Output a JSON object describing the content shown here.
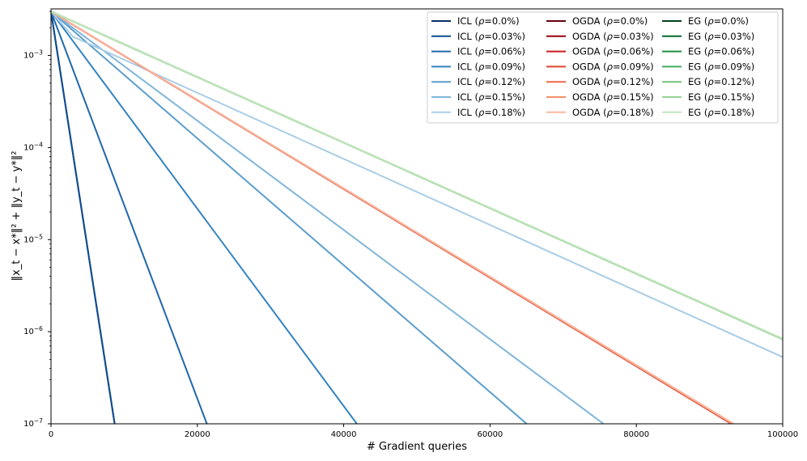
{
  "chart_data": {
    "type": "line",
    "xlabel": "# Gradient queries",
    "ylabel": "‖x_t − x*‖² + ‖y_t − y*‖²",
    "xlim": [
      0,
      100000
    ],
    "ylim": [
      1e-07,
      0.0032
    ],
    "yscale": "log",
    "x_ticks": [
      0,
      20000,
      40000,
      60000,
      80000,
      100000
    ],
    "y_ticks": [
      {
        "value": 1e-07,
        "base": "10",
        "exp": "−7"
      },
      {
        "value": 1e-06,
        "base": "10",
        "exp": "−6"
      },
      {
        "value": 1e-05,
        "base": "10",
        "exp": "−5"
      },
      {
        "value": 0.0001,
        "base": "10",
        "exp": "−4"
      },
      {
        "value": 0.001,
        "base": "10",
        "exp": "−3"
      }
    ],
    "legend_position": "top-right",
    "legend_columns": 3,
    "series": [
      {
        "name": "ICL (ρ=0.0%)",
        "prefix": "ICL",
        "rho": "0.0%",
        "color": "#08306b",
        "points": [
          [
            0,
            0.003
          ],
          [
            8700,
            1e-07
          ]
        ]
      },
      {
        "name": "ICL (ρ=0.03%)",
        "prefix": "ICL",
        "rho": "0.03%",
        "color": "#0f4d8f",
        "points": [
          [
            0,
            0.003
          ],
          [
            8700,
            1e-07
          ]
        ]
      },
      {
        "name": "ICL (ρ=0.06%)",
        "prefix": "ICL",
        "rho": "0.06%",
        "color": "#2166ac",
        "points": [
          [
            0,
            0.003
          ],
          [
            21300,
            1e-07
          ]
        ]
      },
      {
        "name": "ICL (ρ=0.09%)",
        "prefix": "ICL",
        "rho": "0.09%",
        "color": "#3383c0",
        "points": [
          [
            0,
            0.003
          ],
          [
            41800,
            1e-07
          ]
        ]
      },
      {
        "name": "ICL (ρ=0.12%)",
        "prefix": "ICL",
        "rho": "0.12%",
        "color": "#5a9ecc",
        "points": [
          [
            0,
            0.003
          ],
          [
            65000,
            1e-07
          ]
        ]
      },
      {
        "name": "ICL (ρ=0.15%)",
        "prefix": "ICL",
        "rho": "0.15%",
        "color": "#7fb6da",
        "points": [
          [
            0,
            0.003
          ],
          [
            75500,
            1e-07
          ]
        ]
      },
      {
        "name": "ICL (ρ=0.18%)",
        "prefix": "ICL",
        "rho": "0.18%",
        "color": "#a9cde6",
        "points": [
          [
            0,
            0.003
          ],
          [
            3000,
            0.0016
          ],
          [
            100000,
            5.3e-07
          ]
        ]
      },
      {
        "name": "OGDA (ρ=0.0%)",
        "prefix": "OGDA",
        "rho": "0.0%",
        "color": "#67000d",
        "points": [
          [
            0,
            0.003
          ],
          [
            93000,
            1e-07
          ]
        ]
      },
      {
        "name": "OGDA (ρ=0.03%)",
        "prefix": "OGDA",
        "rho": "0.03%",
        "color": "#99000d",
        "points": [
          [
            0,
            0.003
          ],
          [
            93000,
            1e-07
          ]
        ]
      },
      {
        "name": "OGDA (ρ=0.06%)",
        "prefix": "OGDA",
        "rho": "0.06%",
        "color": "#cb181d",
        "points": [
          [
            0,
            0.003
          ],
          [
            93000,
            1e-07
          ]
        ]
      },
      {
        "name": "OGDA (ρ=0.09%)",
        "prefix": "OGDA",
        "rho": "0.09%",
        "color": "#e0442c",
        "points": [
          [
            0,
            0.003
          ],
          [
            93000,
            1e-07
          ]
        ]
      },
      {
        "name": "OGDA (ρ=0.12%)",
        "prefix": "OGDA",
        "rho": "0.12%",
        "color": "#ef6548",
        "points": [
          [
            0,
            0.003
          ],
          [
            93100,
            1e-07
          ]
        ]
      },
      {
        "name": "OGDA (ρ=0.15%)",
        "prefix": "OGDA",
        "rho": "0.15%",
        "color": "#f4906c",
        "points": [
          [
            0,
            0.003
          ],
          [
            93200,
            1e-07
          ]
        ]
      },
      {
        "name": "OGDA (ρ=0.18%)",
        "prefix": "OGDA",
        "rho": "0.18%",
        "color": "#f9b59c",
        "points": [
          [
            0,
            0.003
          ],
          [
            93300,
            1e-07
          ]
        ]
      },
      {
        "name": "EG (ρ=0.0%)",
        "prefix": "EG",
        "rho": "0.0%",
        "color": "#00441b",
        "points": [
          [
            0,
            0.003
          ],
          [
            100000,
            8.3e-07
          ]
        ]
      },
      {
        "name": "EG (ρ=0.03%)",
        "prefix": "EG",
        "rho": "0.03%",
        "color": "#006d2c",
        "points": [
          [
            0,
            0.003
          ],
          [
            100000,
            8.3e-07
          ]
        ]
      },
      {
        "name": "EG (ρ=0.06%)",
        "prefix": "EG",
        "rho": "0.06%",
        "color": "#238b45",
        "points": [
          [
            0,
            0.003
          ],
          [
            100000,
            8.3e-07
          ]
        ]
      },
      {
        "name": "EG (ρ=0.09%)",
        "prefix": "EG",
        "rho": "0.09%",
        "color": "#41ab5d",
        "points": [
          [
            0,
            0.003
          ],
          [
            100000,
            8.3e-07
          ]
        ]
      },
      {
        "name": "EG (ρ=0.12%)",
        "prefix": "EG",
        "rho": "0.12%",
        "color": "#74c476",
        "points": [
          [
            0,
            0.003
          ],
          [
            100000,
            8.3e-07
          ]
        ]
      },
      {
        "name": "EG (ρ=0.15%)",
        "prefix": "EG",
        "rho": "0.15%",
        "color": "#98d594",
        "points": [
          [
            0,
            0.003
          ],
          [
            100000,
            8.3e-07
          ]
        ]
      },
      {
        "name": "EG (ρ=0.18%)",
        "prefix": "EG",
        "rho": "0.18%",
        "color": "#c2e6bc",
        "points": [
          [
            0,
            0.003
          ],
          [
            100000,
            8.4e-07
          ]
        ]
      }
    ]
  }
}
